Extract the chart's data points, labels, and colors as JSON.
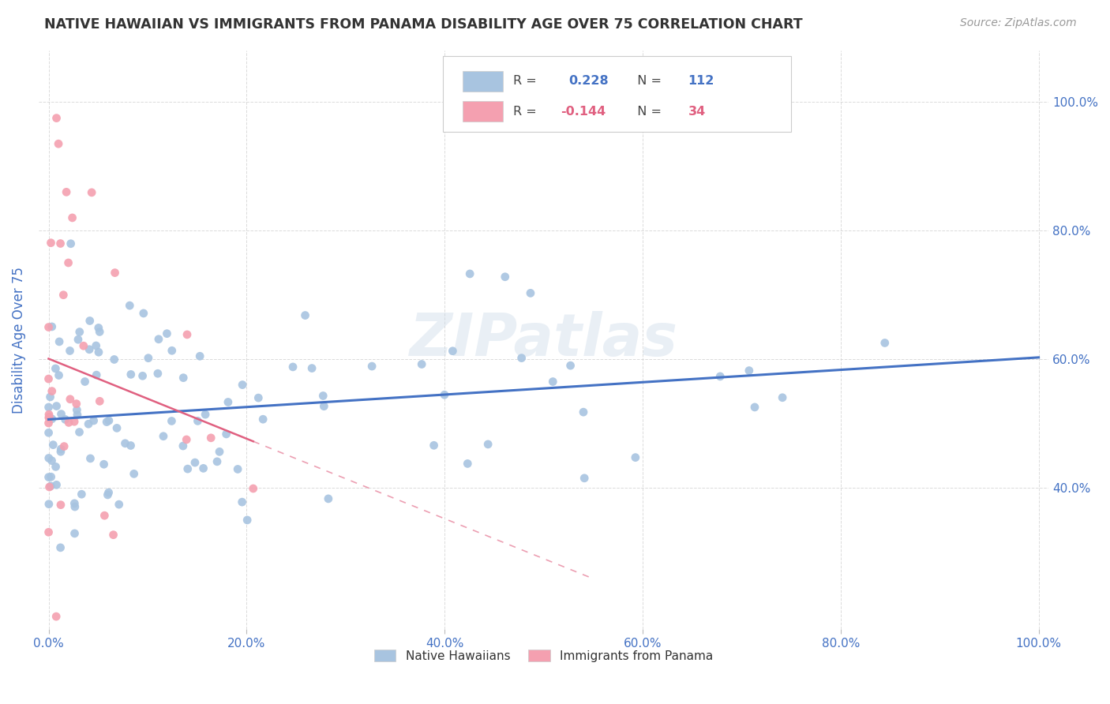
{
  "title": "NATIVE HAWAIIAN VS IMMIGRANTS FROM PANAMA DISABILITY AGE OVER 75 CORRELATION CHART",
  "source": "Source: ZipAtlas.com",
  "ylabel": "Disability Age Over 75",
  "watermark": "ZIPatlas",
  "blue_R": 0.228,
  "blue_N": 112,
  "pink_R": -0.144,
  "pink_N": 34,
  "blue_color": "#a8c4e0",
  "pink_color": "#f4a0b0",
  "blue_line_color": "#4472c4",
  "pink_line_color": "#e06080",
  "title_color": "#333333",
  "tick_color": "#4472c4",
  "grid_color": "#cccccc",
  "background_color": "#ffffff",
  "xlim": [
    0.0,
    1.0
  ],
  "ylim": [
    0.18,
    1.08
  ],
  "x_ticks": [
    0.0,
    0.2,
    0.4,
    0.6,
    0.8,
    1.0
  ],
  "y_ticks": [
    0.4,
    0.6,
    0.8,
    1.0
  ],
  "legend_bottom": [
    "Native Hawaiians",
    "Immigrants from Panama"
  ]
}
